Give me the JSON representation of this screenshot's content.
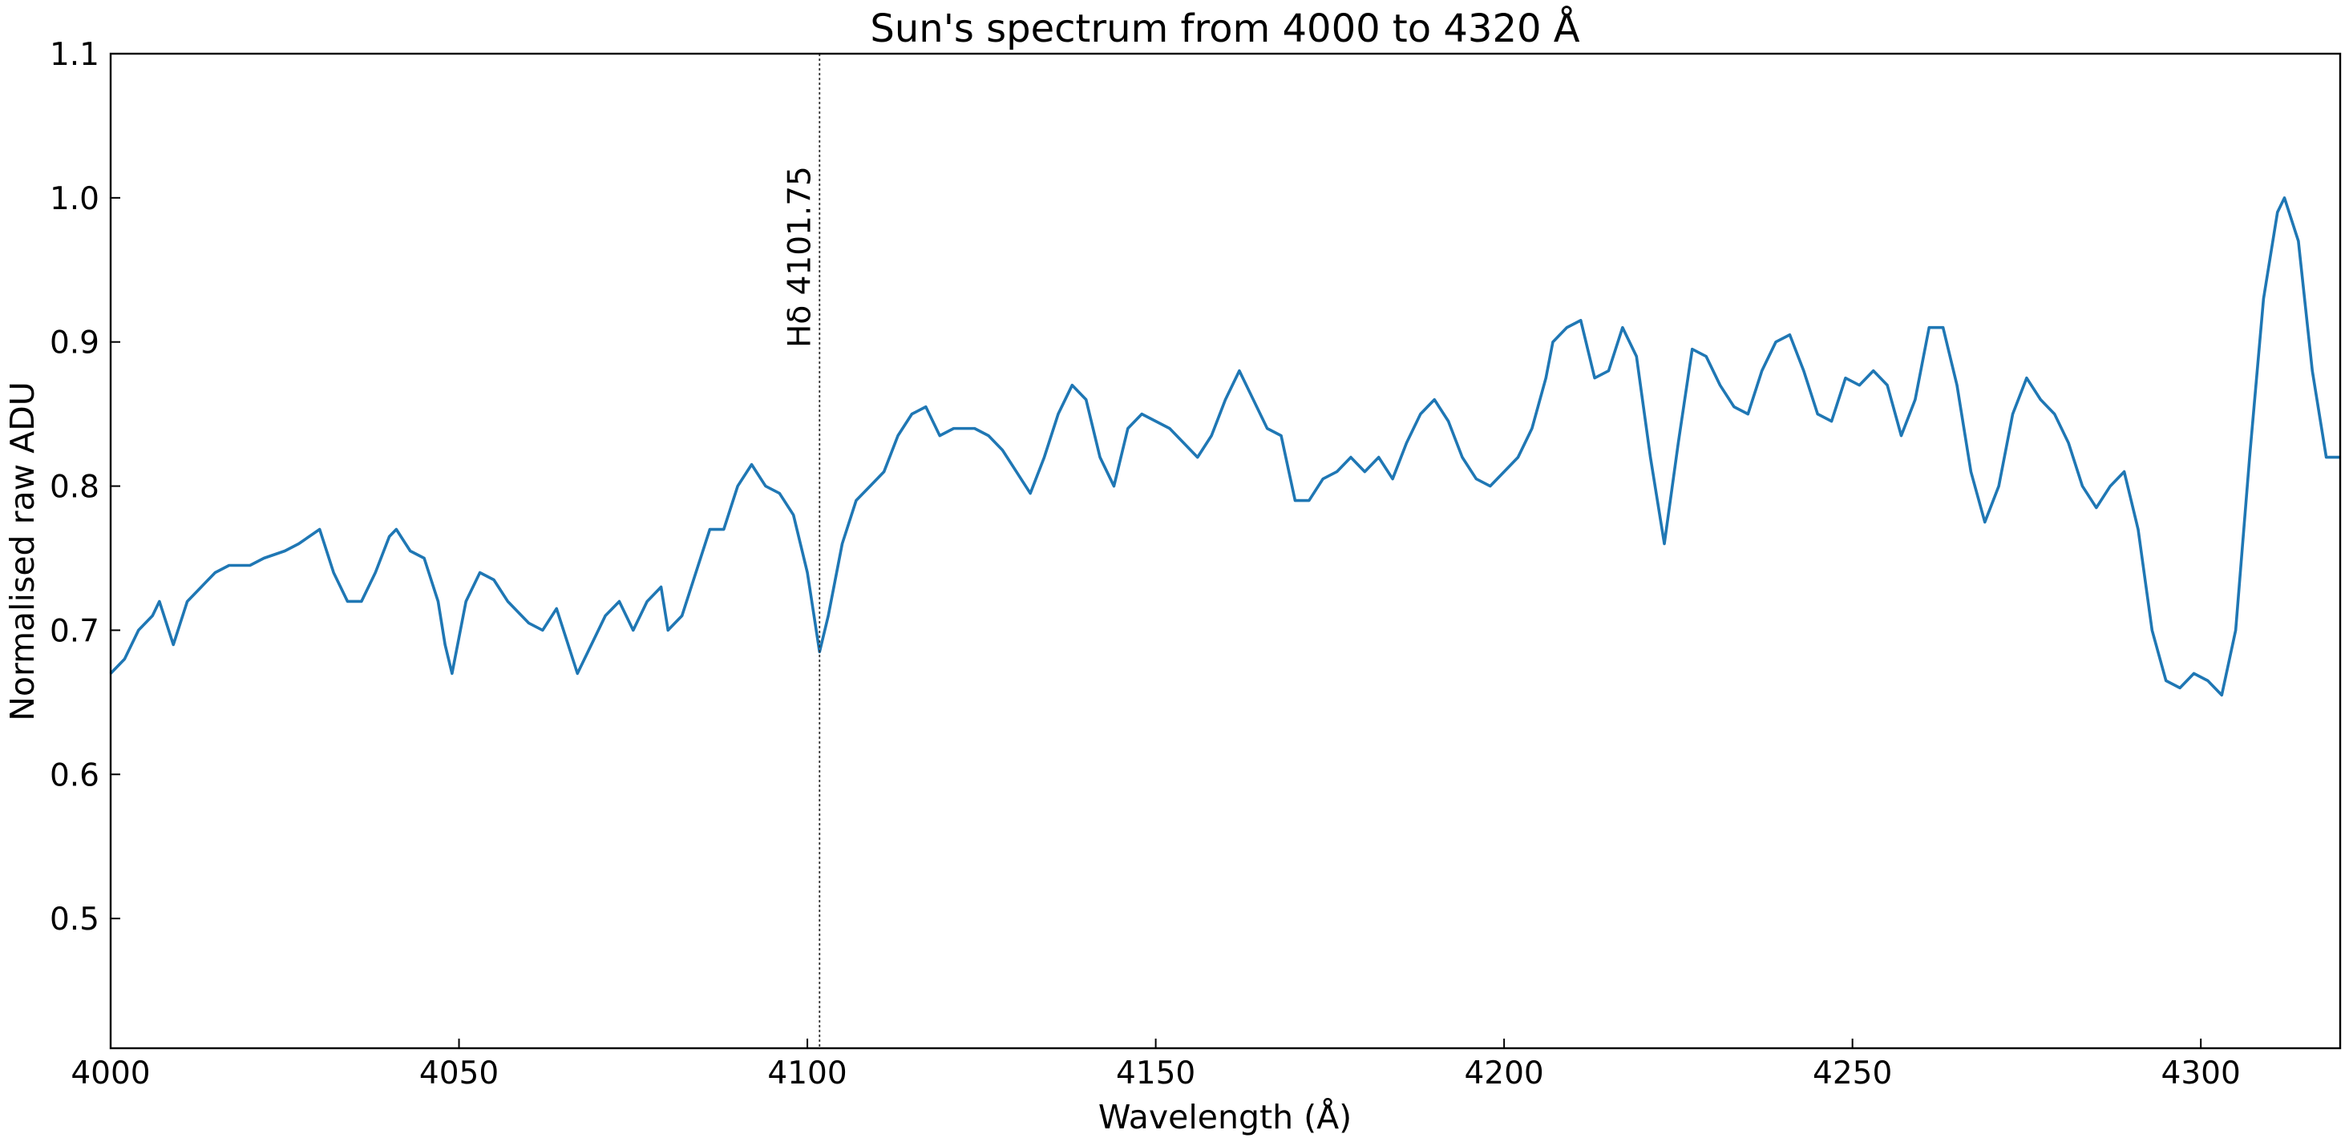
{
  "chart_data": {
    "type": "line",
    "title": "Sun's spectrum from 4000 to 4320 Å",
    "x_label": "Wavelength (Å)",
    "y_label": "Normalised raw ADU",
    "color": "#1f77b4",
    "x": [
      4000,
      4002,
      4004,
      4006,
      4007,
      4009,
      4011,
      4013,
      4015,
      4017,
      4020,
      4022,
      4025,
      4027,
      4030,
      4032,
      4034,
      4036,
      4038,
      4040,
      4041,
      4043,
      4045,
      4047,
      4048,
      4049,
      4051,
      4053,
      4055,
      4057,
      4060,
      4062,
      4064,
      4065,
      4067,
      4069,
      4071,
      4073,
      4075,
      4077,
      4079,
      4080,
      4082,
      4084,
      4086,
      4088,
      4090,
      4092,
      4094,
      4096,
      4098,
      4100,
      4101.75,
      4103,
      4105,
      4107,
      4109,
      4111,
      4113,
      4115,
      4117,
      4119,
      4121,
      4124,
      4126,
      4128,
      4130,
      4132,
      4134,
      4136,
      4138,
      4140,
      4142,
      4144,
      4146,
      4148,
      4150,
      4152,
      4154,
      4156,
      4158,
      4160,
      4162,
      4164,
      4166,
      4168,
      4170,
      4172,
      4174,
      4176,
      4178,
      4180,
      4182,
      4184,
      4186,
      4188,
      4190,
      4192,
      4194,
      4196,
      4198,
      4200,
      4202,
      4204,
      4206,
      4207,
      4209,
      4211,
      4213,
      4215,
      4217,
      4219,
      4221,
      4223,
      4225,
      4227,
      4229,
      4231,
      4233,
      4235,
      4237,
      4239,
      4241,
      4243,
      4245,
      4247,
      4249,
      4251,
      4253,
      4255,
      4257,
      4259,
      4261,
      4263,
      4265,
      4267,
      4269,
      4271,
      4273,
      4275,
      4277,
      4279,
      4281,
      4283,
      4285,
      4287,
      4289,
      4291,
      4293,
      4295,
      4297,
      4299,
      4301,
      4303,
      4305,
      4307,
      4309,
      4311,
      4312,
      4314,
      4316,
      4318,
      4320
    ],
    "values": [
      0.67,
      0.68,
      0.7,
      0.71,
      0.72,
      0.69,
      0.72,
      0.73,
      0.74,
      0.745,
      0.745,
      0.75,
      0.755,
      0.76,
      0.77,
      0.74,
      0.72,
      0.72,
      0.74,
      0.765,
      0.77,
      0.755,
      0.75,
      0.72,
      0.69,
      0.67,
      0.72,
      0.74,
      0.735,
      0.72,
      0.705,
      0.7,
      0.715,
      0.7,
      0.67,
      0.69,
      0.71,
      0.72,
      0.7,
      0.72,
      0.73,
      0.7,
      0.71,
      0.74,
      0.77,
      0.77,
      0.8,
      0.815,
      0.8,
      0.795,
      0.78,
      0.74,
      0.685,
      0.71,
      0.76,
      0.79,
      0.8,
      0.81,
      0.835,
      0.85,
      0.855,
      0.835,
      0.84,
      0.84,
      0.835,
      0.825,
      0.81,
      0.795,
      0.82,
      0.85,
      0.87,
      0.86,
      0.82,
      0.8,
      0.84,
      0.85,
      0.845,
      0.84,
      0.83,
      0.82,
      0.835,
      0.86,
      0.88,
      0.86,
      0.84,
      0.835,
      0.79,
      0.79,
      0.805,
      0.81,
      0.82,
      0.81,
      0.82,
      0.805,
      0.83,
      0.85,
      0.86,
      0.845,
      0.82,
      0.805,
      0.8,
      0.81,
      0.82,
      0.84,
      0.875,
      0.9,
      0.91,
      0.915,
      0.875,
      0.88,
      0.91,
      0.89,
      0.82,
      0.76,
      0.83,
      0.895,
      0.89,
      0.87,
      0.855,
      0.85,
      0.88,
      0.9,
      0.905,
      0.88,
      0.85,
      0.845,
      0.875,
      0.87,
      0.88,
      0.87,
      0.835,
      0.86,
      0.91,
      0.91,
      0.87,
      0.81,
      0.775,
      0.8,
      0.85,
      0.875,
      0.86,
      0.85,
      0.83,
      0.8,
      0.785,
      0.8,
      0.81,
      0.77,
      0.7,
      0.665,
      0.66,
      0.67,
      0.665,
      0.655,
      0.7,
      0.82,
      0.93,
      0.99,
      1.0,
      0.97,
      0.88,
      0.82,
      0.82
    ],
    "xlim": [
      4000,
      4320
    ],
    "ylim": [
      0.41,
      1.1
    ],
    "xticks": [
      4000,
      4050,
      4100,
      4150,
      4200,
      4250,
      4300
    ],
    "yticks": [
      0.5,
      0.6,
      0.7,
      0.8,
      0.9,
      {
        "value": 1,
        "label": "1.0"
      },
      1.1
    ],
    "grid": false,
    "annotations": [
      {
        "x": 4101.75,
        "label": "Hδ 4101.75"
      }
    ]
  }
}
